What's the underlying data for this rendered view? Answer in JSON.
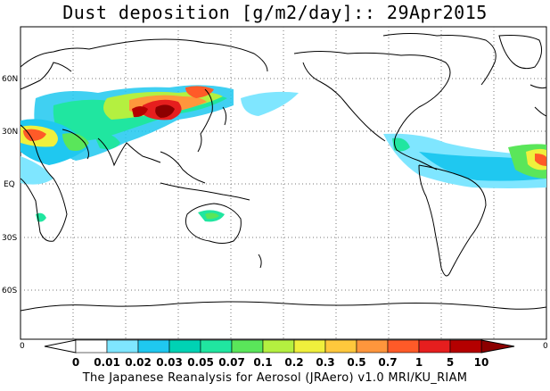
{
  "title": "Dust deposition [g/m2/day]:: 29Apr2015",
  "footer": "The Japanese Reanalysis for Aerosol (JRAero) v1.0 MRI/KU_RIAM",
  "lat_labels": [
    "60N",
    "30N",
    "EQ",
    "30S",
    "60S"
  ],
  "colorbar": {
    "edge_left": "0",
    "edge_right": "0",
    "labels": [
      "0",
      "0.01",
      "0.02",
      "0.03",
      "0.05",
      "0.07",
      "0.1",
      "0.2",
      "0.3",
      "0.5",
      "0.7",
      "1",
      "5",
      "10"
    ],
    "colors": [
      "#ffffff",
      "#ffffff",
      "#7fe6ff",
      "#1fc8f0",
      "#00d2b4",
      "#20e6a0",
      "#5ae65a",
      "#b4f040",
      "#f0f03c",
      "#ffc83c",
      "#ff963c",
      "#ff5a28",
      "#e61e1e",
      "#b40000",
      "#8c0000"
    ]
  }
}
